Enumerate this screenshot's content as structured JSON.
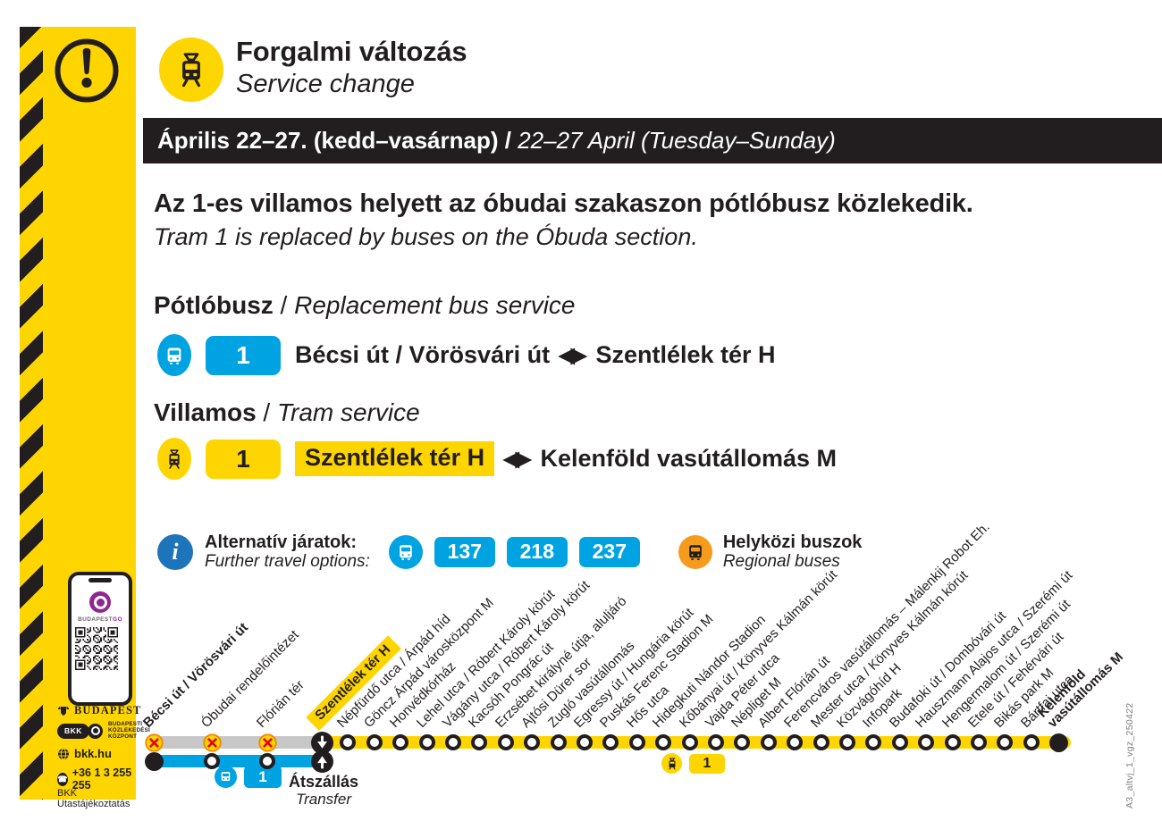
{
  "poster": {
    "header": {
      "title_hu": "Forgalmi változás",
      "title_en": "Service change"
    },
    "date_bar": {
      "hu": "Április 22–27. (kedd–vasárnap)",
      "sep": " / ",
      "en": "22–27 April (Tuesday–Sunday)"
    },
    "lead": {
      "hu": "Az 1-es villamos helyett az óbudai szakaszon pótlóbusz közlekedik.",
      "en": "Tram 1 is replaced by buses on the Óbuda section."
    },
    "bus_section": {
      "heading_hu": "Pótlóbusz",
      "sep": " / ",
      "heading_en": "Replacement bus service",
      "line_number": "1",
      "from": "Bécsi út / Vörösvári út",
      "arrows": "◀▶",
      "to": "Szentlélek tér H"
    },
    "tram_section": {
      "heading_hu": "Villamos",
      "sep": " / ",
      "heading_en": "Tram service",
      "line_number": "1",
      "from": "Szentlélek tér H",
      "arrows": "◀▶",
      "to": "Kelenföld vasútállomás M"
    },
    "alternatives": {
      "label_hu": "Alternatív járatok:",
      "label_en": "Further travel options:",
      "routes": [
        "137",
        "218",
        "237"
      ],
      "regional_hu": "Helyközi buszok",
      "regional_en": "Regional buses"
    },
    "diagram": {
      "transfer_hu": "Átszállás",
      "transfer_en": "Transfer",
      "bus_badge": "1",
      "tram_badge": "1",
      "stops": [
        {
          "label": "Bécsi út / Vörösvári út",
          "bold": true
        },
        {
          "label": "Óbudai rendelőintézet"
        },
        {
          "label": "Flórián tér"
        },
        {
          "label": "Szentlélek tér H",
          "highlight": true
        },
        {
          "label": "Népfürdő utca / Árpád híd"
        },
        {
          "label": "Göncz Árpád városközpont M"
        },
        {
          "label": "Honvédkórház"
        },
        {
          "label": "Lehel utca / Róbert Károly körút"
        },
        {
          "label": "Vágány utca / Róbert Károly körút"
        },
        {
          "label": "Kacsóh Pongrác út"
        },
        {
          "label": "Erzsébet királyné útja, aluljáró"
        },
        {
          "label": "Ajtósi Dürer sor"
        },
        {
          "label": "Zugló vasútállomás"
        },
        {
          "label": "Egressy út / Hungária körút"
        },
        {
          "label": "Puskás Ferenc Stadion M"
        },
        {
          "label": "Hős utca"
        },
        {
          "label": "Hidegkuti Nándor Stadion"
        },
        {
          "label": "Kőbányai út / Könyves Kálmán körút"
        },
        {
          "label": "Vajda Péter utca"
        },
        {
          "label": "Népliget M"
        },
        {
          "label": "Albert Flórián út"
        },
        {
          "label": "Ferencváros vasútállomás – Málenkij Robot Eh."
        },
        {
          "label": "Mester utca / Könyves Kálmán körút"
        },
        {
          "label": "Közvágóhíd H"
        },
        {
          "label": "Infopark"
        },
        {
          "label": "Budafoki út / Dombóvári út"
        },
        {
          "label": "Hauszmann Alajos utca / Szerémi út"
        },
        {
          "label": "Hengermalom út / Szerémi út"
        },
        {
          "label": "Etele út / Fehérvári út"
        },
        {
          "label": "Bikás park M"
        },
        {
          "label": "Bártfai utca"
        },
        {
          "label": "Kelenföld\nvasútállomás M",
          "bold": true,
          "terminus": true
        }
      ]
    },
    "sidebar": {
      "app_name_1": "BUDAPEST",
      "app_name_2": "GO",
      "brand": "BUDAPEST",
      "bkk_acronym": "BKK",
      "bkk_full_1": "BUDAPESTI",
      "bkk_full_2": "KÖZLEKEDÉSI",
      "bkk_full_3": "KÖZPONT",
      "website": "bkk.hu",
      "phone": "+36 1 3 255 255",
      "info_line": "BKK Utastájékoztatás",
      "phone_glyph": "☎"
    },
    "footer_code": "A3_altvj_1_vgz_250422",
    "colors": {
      "yellow": "#FFD500",
      "blue": "#00A3E2",
      "info_blue": "#1E74BB",
      "orange": "#F59C1D",
      "black": "#221E1F",
      "gray_line": "#C7C7C7",
      "red_x": "#E30613"
    }
  }
}
